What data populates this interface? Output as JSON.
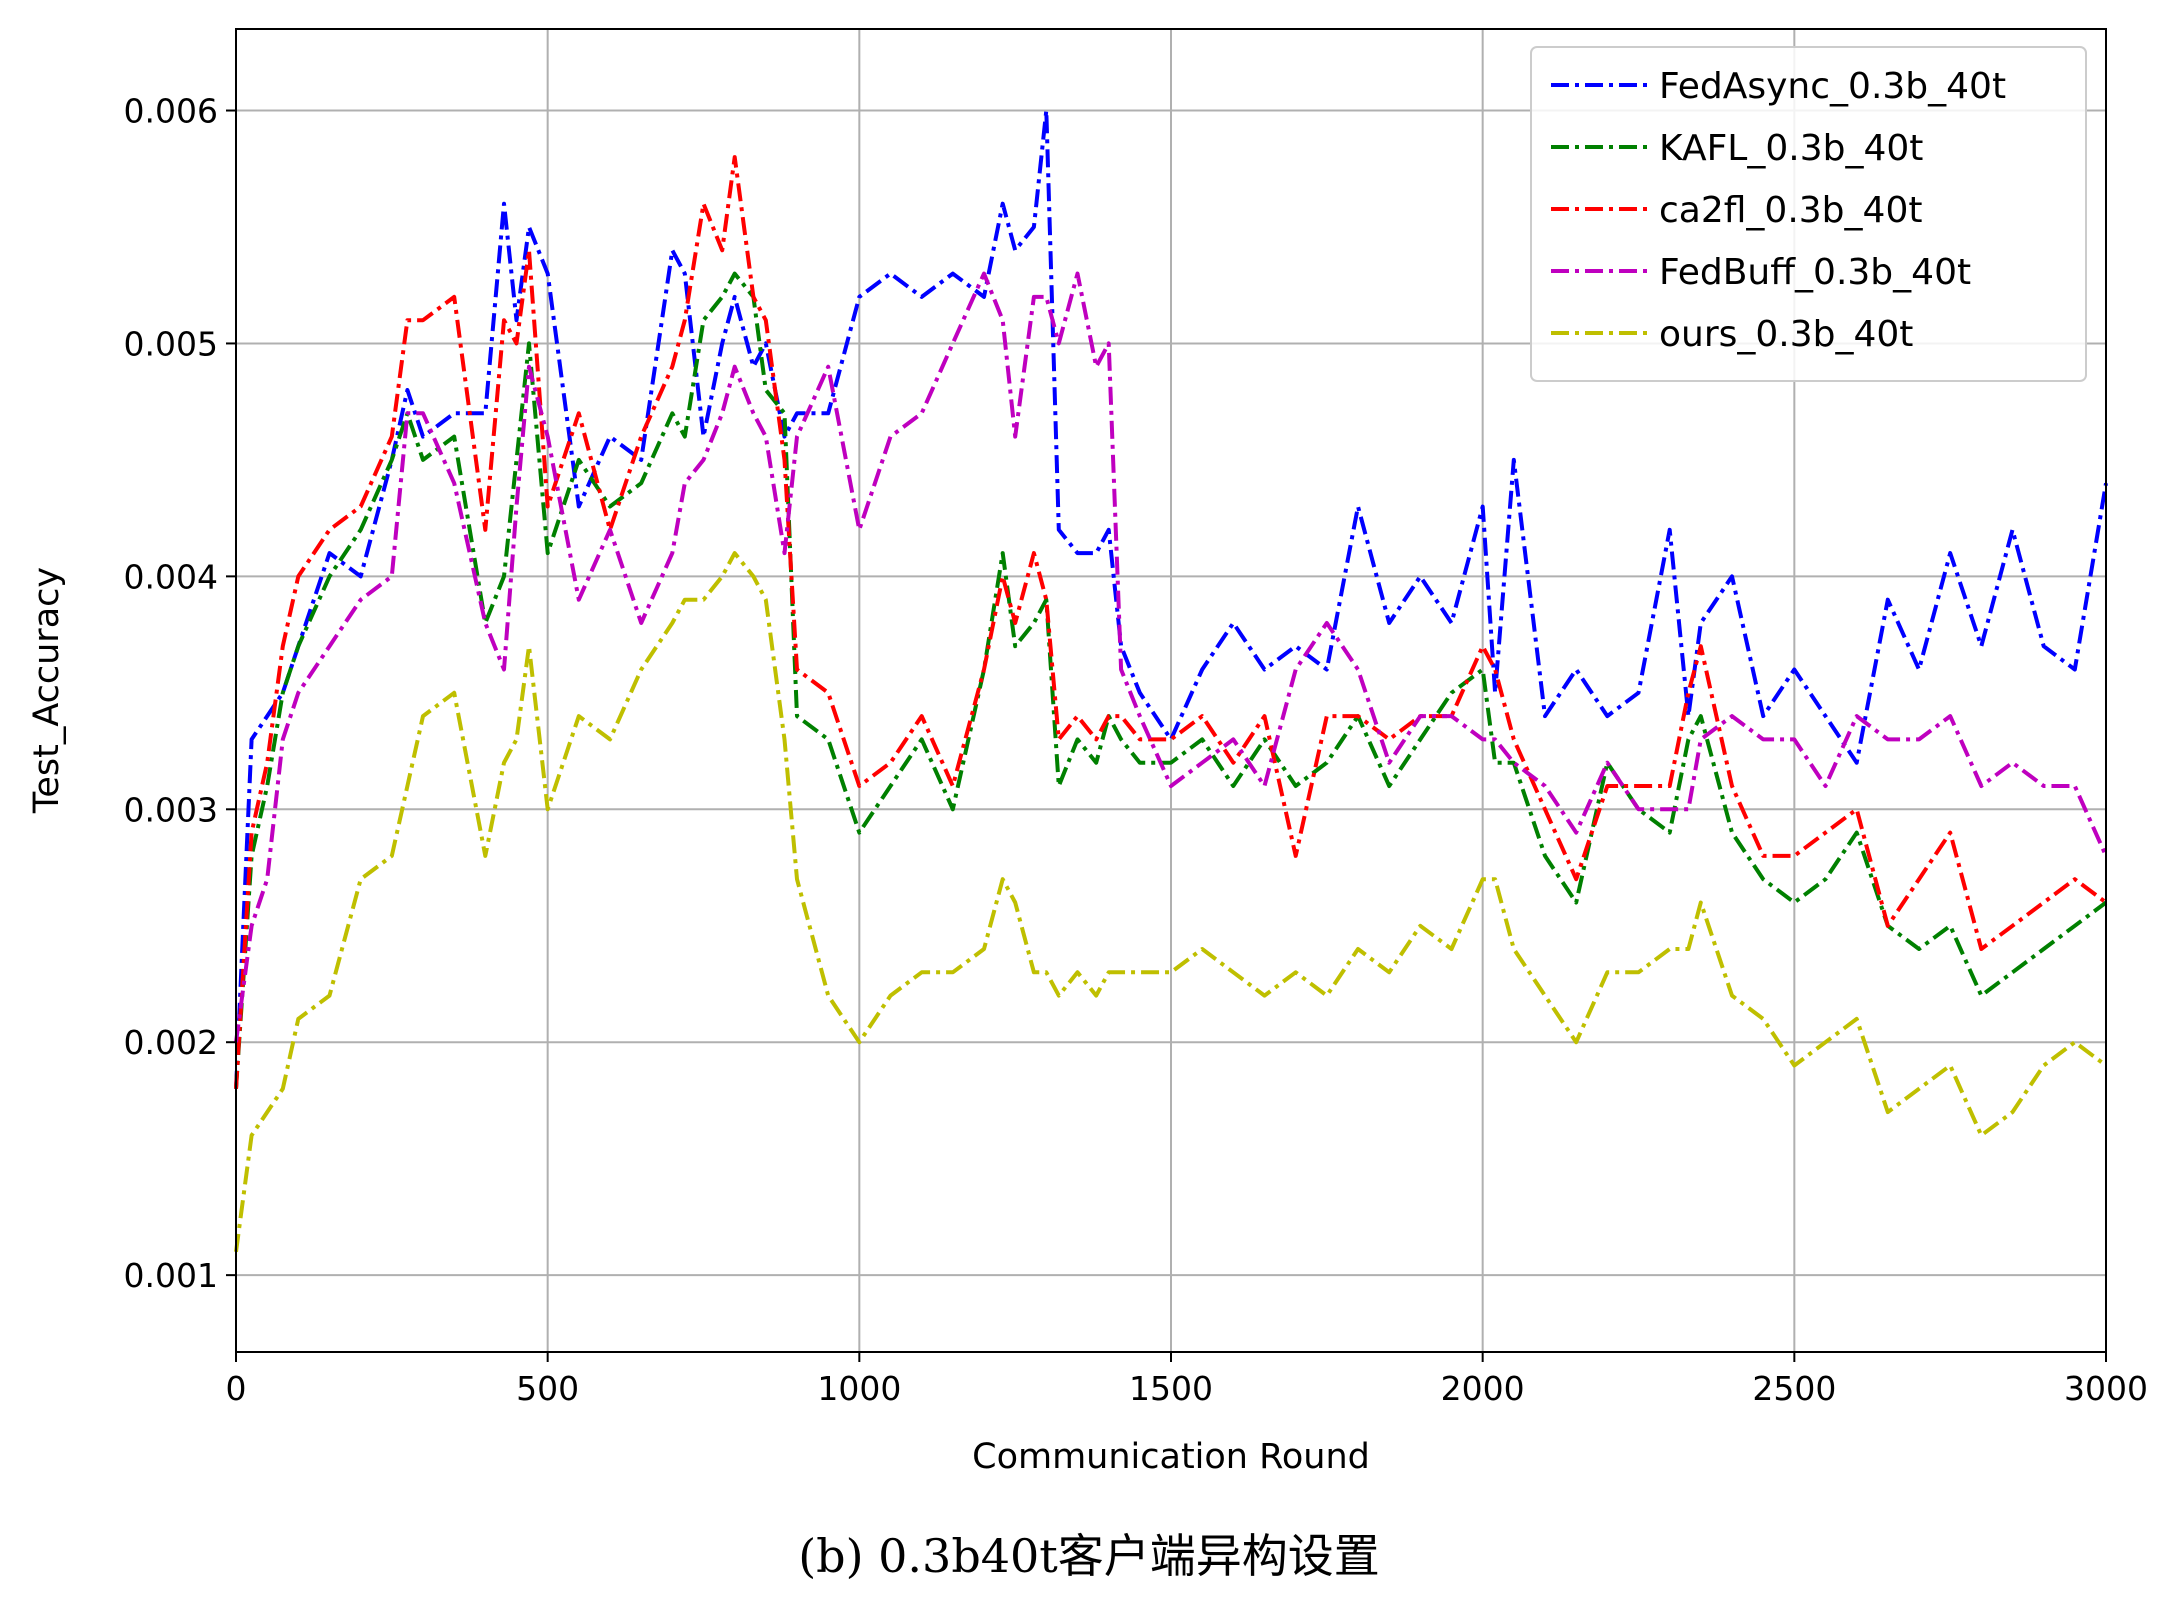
{
  "caption": "(b) 0.3b40t客户端异构设置",
  "chart_data": {
    "type": "line",
    "title": "",
    "xlabel": "Communication Round",
    "ylabel": "Test_Accuracy",
    "xlim": [
      0,
      3000
    ],
    "ylim": [
      0.00067,
      0.00635
    ],
    "xticks": [
      "0",
      "500",
      "1000",
      "1500",
      "2000",
      "2500",
      "3000"
    ],
    "yticks": [
      "0.001",
      "0.002",
      "0.003",
      "0.004",
      "0.005",
      "0.006"
    ],
    "grid": true,
    "legend": "top-right",
    "line_style": "dash-dot",
    "x": [
      0,
      25,
      50,
      75,
      100,
      150,
      200,
      250,
      275,
      300,
      350,
      400,
      430,
      450,
      470,
      500,
      550,
      600,
      650,
      700,
      720,
      750,
      780,
      800,
      830,
      850,
      880,
      900,
      950,
      1000,
      1050,
      1100,
      1150,
      1200,
      1230,
      1250,
      1280,
      1300,
      1320,
      1350,
      1380,
      1400,
      1420,
      1450,
      1500,
      1550,
      1600,
      1650,
      1700,
      1750,
      1800,
      1850,
      1900,
      1950,
      2000,
      2020,
      2050,
      2100,
      2150,
      2200,
      2250,
      2300,
      2330,
      2350,
      2400,
      2450,
      2500,
      2550,
      2600,
      2650,
      2700,
      2750,
      2800,
      2850,
      2900,
      2950,
      3000
    ],
    "series": [
      {
        "name": "FedAsync_0.3b_40t",
        "color": "#0000ff",
        "values": [
          0.0018,
          0.0033,
          0.0034,
          0.0035,
          0.0037,
          0.0041,
          0.004,
          0.0045,
          0.0048,
          0.0046,
          0.0047,
          0.0047,
          0.0056,
          0.0051,
          0.0055,
          0.0053,
          0.0043,
          0.0046,
          0.0045,
          0.0054,
          0.0053,
          0.0046,
          0.005,
          0.0052,
          0.0049,
          0.005,
          0.0046,
          0.0047,
          0.0047,
          0.0052,
          0.0053,
          0.0052,
          0.0053,
          0.0052,
          0.0056,
          0.0054,
          0.0055,
          0.006,
          0.0042,
          0.0041,
          0.0041,
          0.0042,
          0.0037,
          0.0035,
          0.0033,
          0.0036,
          0.0038,
          0.0036,
          0.0037,
          0.0036,
          0.0043,
          0.0038,
          0.004,
          0.0038,
          0.0043,
          0.0035,
          0.0045,
          0.0034,
          0.0036,
          0.0034,
          0.0035,
          0.0042,
          0.0034,
          0.0038,
          0.004,
          0.0034,
          0.0036,
          0.0034,
          0.0032,
          0.0039,
          0.0036,
          0.0041,
          0.0037,
          0.0042,
          0.0037,
          0.0036,
          0.0044
        ]
      },
      {
        "name": "KAFL_0.3b_40t",
        "color": "#008000",
        "values": [
          0.0018,
          0.0028,
          0.0031,
          0.0035,
          0.0037,
          0.004,
          0.0042,
          0.0045,
          0.0047,
          0.0045,
          0.0046,
          0.0038,
          0.004,
          0.0045,
          0.005,
          0.0041,
          0.0045,
          0.0043,
          0.0044,
          0.0047,
          0.0046,
          0.0051,
          0.0052,
          0.0053,
          0.0052,
          0.0048,
          0.0047,
          0.0034,
          0.0033,
          0.0029,
          0.0031,
          0.0033,
          0.003,
          0.0036,
          0.0041,
          0.0037,
          0.0038,
          0.0039,
          0.0031,
          0.0033,
          0.0032,
          0.0034,
          0.0033,
          0.0032,
          0.0032,
          0.0033,
          0.0031,
          0.0033,
          0.0031,
          0.0032,
          0.0034,
          0.0031,
          0.0033,
          0.0035,
          0.0036,
          0.0032,
          0.0032,
          0.0028,
          0.0026,
          0.0032,
          0.003,
          0.0029,
          0.0033,
          0.0034,
          0.0029,
          0.0027,
          0.0026,
          0.0027,
          0.0029,
          0.0025,
          0.0024,
          0.0025,
          0.0022,
          0.0023,
          0.0024,
          0.0025,
          0.0026
        ]
      },
      {
        "name": "ca2fl_0.3b_40t",
        "color": "#ff0000",
        "values": [
          0.0018,
          0.0029,
          0.0032,
          0.0037,
          0.004,
          0.0042,
          0.0043,
          0.0046,
          0.0051,
          0.0051,
          0.0052,
          0.0042,
          0.0051,
          0.005,
          0.0054,
          0.0043,
          0.0047,
          0.0042,
          0.0046,
          0.0049,
          0.0051,
          0.0056,
          0.0054,
          0.0058,
          0.0052,
          0.0051,
          0.0045,
          0.0036,
          0.0035,
          0.0031,
          0.0032,
          0.0034,
          0.0031,
          0.0036,
          0.004,
          0.0038,
          0.0041,
          0.0039,
          0.0033,
          0.0034,
          0.0033,
          0.0034,
          0.0034,
          0.0033,
          0.0033,
          0.0034,
          0.0032,
          0.0034,
          0.0028,
          0.0034,
          0.0034,
          0.0033,
          0.0034,
          0.0034,
          0.0037,
          0.0036,
          0.0033,
          0.003,
          0.0027,
          0.0031,
          0.0031,
          0.0031,
          0.0035,
          0.0037,
          0.0031,
          0.0028,
          0.0028,
          0.0029,
          0.003,
          0.0025,
          0.0027,
          0.0029,
          0.0024,
          0.0025,
          0.0026,
          0.0027,
          0.0026
        ]
      },
      {
        "name": "FedBuff_0.3b_40t",
        "color": "#bf00bf",
        "values": [
          0.002,
          0.0025,
          0.0027,
          0.0033,
          0.0035,
          0.0037,
          0.0039,
          0.004,
          0.0047,
          0.0047,
          0.0044,
          0.0038,
          0.0036,
          0.0043,
          0.0049,
          0.0046,
          0.0039,
          0.0042,
          0.0038,
          0.0041,
          0.0044,
          0.0045,
          0.0047,
          0.0049,
          0.0047,
          0.0046,
          0.0041,
          0.0046,
          0.0049,
          0.0042,
          0.0046,
          0.0047,
          0.005,
          0.0053,
          0.0051,
          0.0046,
          0.0052,
          0.0052,
          0.005,
          0.0053,
          0.0049,
          0.005,
          0.0036,
          0.0034,
          0.0031,
          0.0032,
          0.0033,
          0.0031,
          0.0036,
          0.0038,
          0.0036,
          0.0032,
          0.0034,
          0.0034,
          0.0033,
          0.0033,
          0.0032,
          0.0031,
          0.0029,
          0.0032,
          0.003,
          0.003,
          0.003,
          0.0033,
          0.0034,
          0.0033,
          0.0033,
          0.0031,
          0.0034,
          0.0033,
          0.0033,
          0.0034,
          0.0031,
          0.0032,
          0.0031,
          0.0031,
          0.0028
        ]
      },
      {
        "name": "ours_0.3b_40t",
        "color": "#bfbf00",
        "values": [
          0.0011,
          0.0016,
          0.0017,
          0.0018,
          0.0021,
          0.0022,
          0.0027,
          0.0028,
          0.0031,
          0.0034,
          0.0035,
          0.0028,
          0.0032,
          0.0033,
          0.0037,
          0.003,
          0.0034,
          0.0033,
          0.0036,
          0.0038,
          0.0039,
          0.0039,
          0.004,
          0.0041,
          0.004,
          0.0039,
          0.0033,
          0.0027,
          0.0022,
          0.002,
          0.0022,
          0.0023,
          0.0023,
          0.0024,
          0.0027,
          0.0026,
          0.0023,
          0.0023,
          0.0022,
          0.0023,
          0.0022,
          0.0023,
          0.0023,
          0.0023,
          0.0023,
          0.0024,
          0.0023,
          0.0022,
          0.0023,
          0.0022,
          0.0024,
          0.0023,
          0.0025,
          0.0024,
          0.0027,
          0.0027,
          0.0024,
          0.0022,
          0.002,
          0.0023,
          0.0023,
          0.0024,
          0.0024,
          0.0026,
          0.0022,
          0.0021,
          0.0019,
          0.002,
          0.0021,
          0.0017,
          0.0018,
          0.0019,
          0.0016,
          0.0017,
          0.0019,
          0.002,
          0.0019
        ]
      }
    ]
  }
}
